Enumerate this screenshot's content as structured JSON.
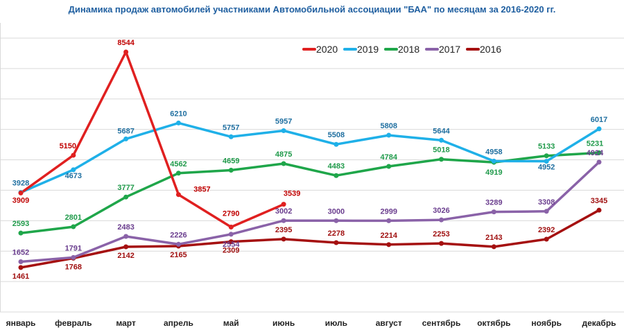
{
  "chart_data": {
    "type": "line",
    "title": "Динамика продаж автомобилей участниками Автомобильной ассоциации \"БАА\" по месяцам за 2016-2020 гг.",
    "xlabel": "",
    "ylabel": "",
    "ylim": [
      0,
      9500
    ],
    "grid": true,
    "legend_position": "top-right",
    "categories": [
      "январь",
      "февраль",
      "март",
      "апрель",
      "май",
      "июнь",
      "июль",
      "август",
      "сентябрь",
      "октябрь",
      "ноябрь",
      "декабрь"
    ],
    "series": [
      {
        "name": "2020",
        "color": "#e02020",
        "label_color": "#c00000",
        "values": [
          3909,
          5150,
          8544,
          3857,
          2790,
          3539,
          null,
          null,
          null,
          null,
          null,
          null
        ]
      },
      {
        "name": "2019",
        "color": "#1fb0e8",
        "label_color": "#1f6fa0",
        "values": [
          3928,
          4673,
          5687,
          6210,
          5757,
          5957,
          5508,
          5808,
          5644,
          4958,
          4952,
          6017
        ]
      },
      {
        "name": "2018",
        "color": "#1fa64a",
        "label_color": "#1f9a4a",
        "values": [
          2593,
          2801,
          3777,
          4562,
          4659,
          4875,
          4483,
          4784,
          5018,
          4919,
          5133,
          5231
        ]
      },
      {
        "name": "2017",
        "color": "#8a62a8",
        "label_color": "#6a3d8e",
        "values": [
          1652,
          1791,
          2483,
          2226,
          2554,
          3002,
          3000,
          2999,
          3026,
          3289,
          3308,
          4924
        ]
      },
      {
        "name": "2016",
        "color": "#a51010",
        "label_color": "#a01010",
        "values": [
          1461,
          1768,
          2142,
          2165,
          2309,
          2395,
          2278,
          2214,
          2253,
          2143,
          2392,
          3345
        ]
      }
    ]
  }
}
